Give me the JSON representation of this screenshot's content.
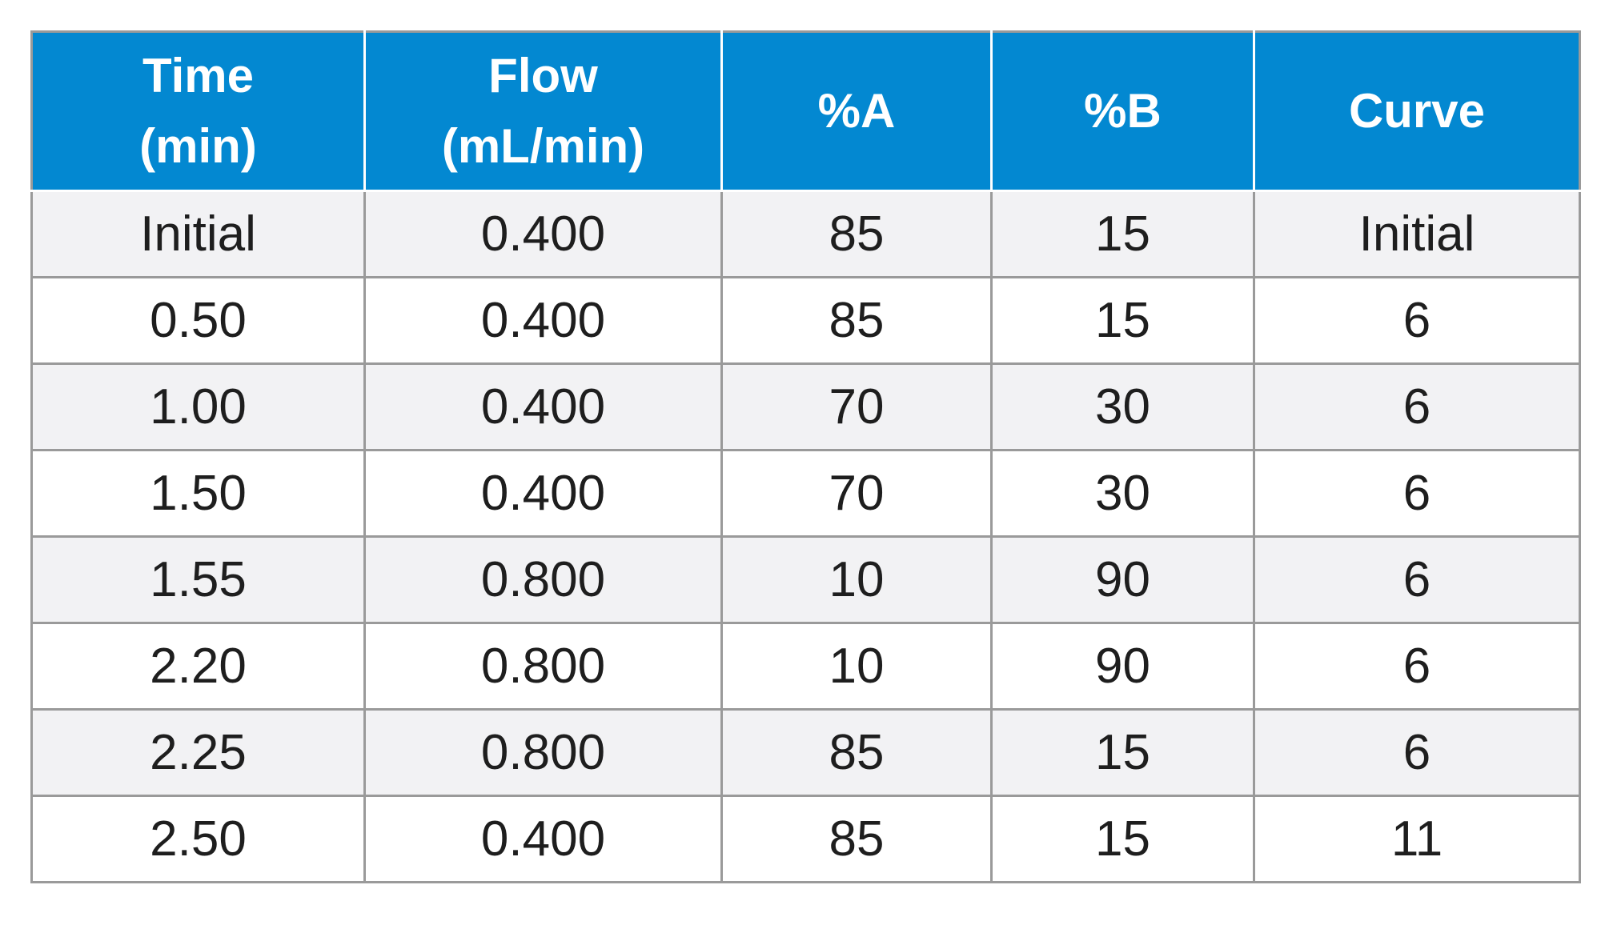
{
  "table": {
    "headers": [
      {
        "line1": "Time",
        "line2": "(min)"
      },
      {
        "line1": "Flow",
        "line2": "(mL/min)"
      },
      {
        "line1": "%A",
        "line2": ""
      },
      {
        "line1": "%B",
        "line2": ""
      },
      {
        "line1": "Curve",
        "line2": ""
      }
    ],
    "rows": [
      [
        "Initial",
        "0.400",
        "85",
        "15",
        "Initial"
      ],
      [
        "0.50",
        "0.400",
        "85",
        "15",
        "6"
      ],
      [
        "1.00",
        "0.400",
        "70",
        "30",
        "6"
      ],
      [
        "1.50",
        "0.400",
        "70",
        "30",
        "6"
      ],
      [
        "1.55",
        "0.800",
        "10",
        "90",
        "6"
      ],
      [
        "2.20",
        "0.800",
        "10",
        "90",
        "6"
      ],
      [
        "2.25",
        "0.800",
        "85",
        "15",
        "6"
      ],
      [
        "2.50",
        "0.400",
        "85",
        "15",
        "11"
      ]
    ],
    "colors": {
      "header_bg": "#0388d1",
      "header_text": "#ffffff",
      "row_alt_bg": "#f2f2f4",
      "grid": "#9a9a9a",
      "text": "#1e1e1e"
    }
  }
}
